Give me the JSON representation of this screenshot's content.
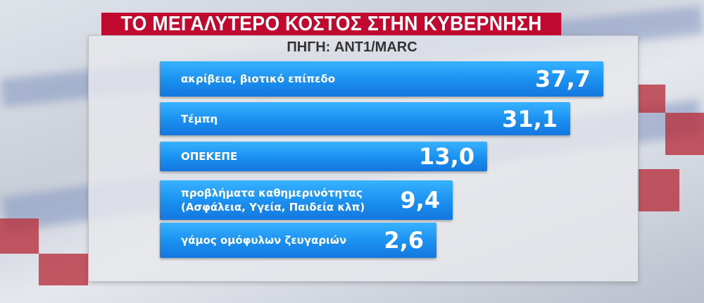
{
  "chart_data": {
    "type": "bar",
    "orientation": "horizontal",
    "title": "ΤΟ ΜΕΓΑΛΥΤΕΡΟ ΚΟΣΤΟΣ ΣΤΗΝ ΚΥΒΕΡΝΗΣΗ",
    "subtitle": "ΠΗΓΗ: ANT1/MARC",
    "categories": [
      "ακρίβεια, βιοτικό επίπεδο",
      "Τέμπη",
      "ΟΠΕΚΕΠΕ",
      "προβλήματα καθημερινότητας (Ασφάλεια, Υγεία, Παιδεία κλπ)",
      "γάμος ομόφυλων ζευγαριών"
    ],
    "category_lines": [
      [
        "ακρίβεια, βιοτικό επίπεδο"
      ],
      [
        "Τέμπη"
      ],
      [
        "ΟΠΕΚΕΠΕ"
      ],
      [
        "προβλήματα καθημερινότητας",
        "(Ασφάλεια, Υγεία, Παιδεία κλπ)"
      ],
      [
        "γάμος ομόφυλων ζευγαριών"
      ]
    ],
    "values": [
      37.7,
      31.1,
      13.0,
      9.4,
      2.6
    ],
    "value_labels": [
      "37,7",
      "31,1",
      "13,0",
      "9,4",
      "2,6"
    ],
    "colors": {
      "bar": "#1a8ff0",
      "title_bg": "#c1082f"
    }
  }
}
